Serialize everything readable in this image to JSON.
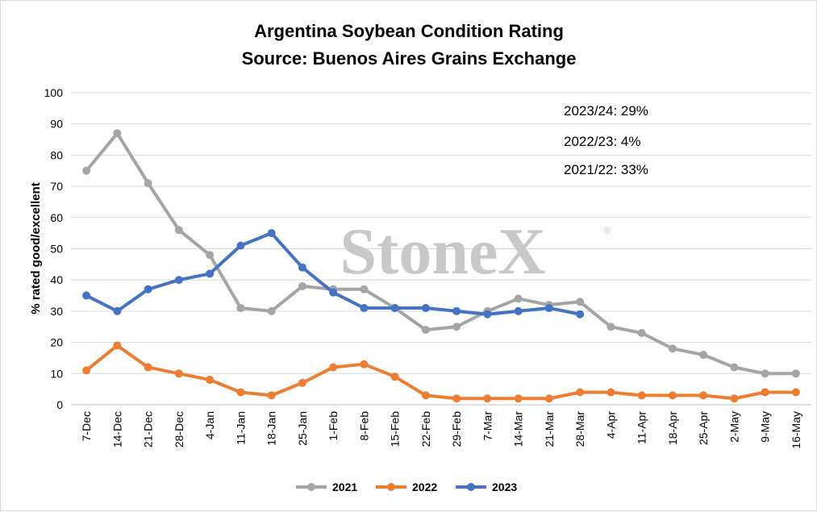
{
  "colors": {
    "s2021": "#A5A5A5",
    "s2022": "#ED7D31",
    "s2023": "#4472C4",
    "grid": "#d9d9d9",
    "watermark": "#c8c8c8"
  },
  "watermark": {
    "text": "StoneX",
    "mark": "®"
  },
  "chart_data": {
    "type": "line",
    "title": "Argentina Soybean Condition Rating",
    "subtitle": "Source: Buenos Aires Grains Exchange",
    "xlabel": "",
    "ylabel": "% rated good/excellent",
    "ylim": [
      0,
      100
    ],
    "yticks": [
      0,
      10,
      20,
      30,
      40,
      50,
      60,
      70,
      80,
      90,
      100
    ],
    "grid": true,
    "legend_position": "bottom",
    "categories": [
      "7-Dec",
      "14-Dec",
      "21-Dec",
      "28-Dec",
      "4-Jan",
      "11-Jan",
      "18-Jan",
      "25-Jan",
      "1-Feb",
      "8-Feb",
      "15-Feb",
      "22-Feb",
      "29-Feb",
      "7-Mar",
      "14-Mar",
      "21-Mar",
      "28-Mar",
      "4-Apr",
      "11-Apr",
      "18-Apr",
      "25-Apr",
      "2-May",
      "9-May",
      "16-May"
    ],
    "series": [
      {
        "name": "2021",
        "color_key": "s2021",
        "values": [
          75,
          87,
          71,
          56,
          48,
          31,
          30,
          38,
          37,
          37,
          31,
          24,
          25,
          30,
          34,
          32,
          33,
          25,
          23,
          18,
          16,
          12,
          10,
          10
        ]
      },
      {
        "name": "2022",
        "color_key": "s2022",
        "values": [
          11,
          19,
          12,
          10,
          8,
          4,
          3,
          7,
          12,
          13,
          9,
          3,
          2,
          2,
          2,
          2,
          4,
          4,
          3,
          3,
          3,
          2,
          4,
          4
        ]
      },
      {
        "name": "2023",
        "color_key": "s2023",
        "values": [
          35,
          30,
          37,
          40,
          42,
          51,
          55,
          44,
          36,
          31,
          31,
          31,
          30,
          29,
          30,
          31,
          29,
          null,
          null,
          null,
          null,
          null,
          null,
          null
        ]
      }
    ],
    "annotations": [
      "2023/24: 29%",
      "2022/23: 4%",
      "2021/22: 33%"
    ]
  }
}
